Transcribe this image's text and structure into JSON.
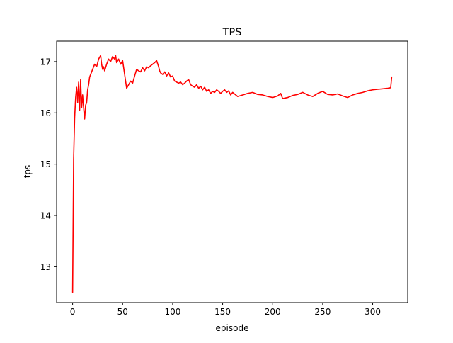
{
  "chart_data": {
    "type": "line",
    "title": "TPS",
    "xlabel": "episode",
    "ylabel": "tps",
    "xlim": [
      -16,
      335
    ],
    "ylim": [
      12.3,
      17.4
    ],
    "xticks": [
      0,
      50,
      100,
      150,
      200,
      250,
      300
    ],
    "yticks": [
      13,
      14,
      15,
      16,
      17
    ],
    "grid": false,
    "legend": "none",
    "series": [
      {
        "color": "#ff0000",
        "x": [
          0,
          1,
          2,
          3,
          4,
          5,
          6,
          7,
          8,
          9,
          10,
          11,
          12,
          13,
          14,
          15,
          16,
          17,
          18,
          19,
          20,
          22,
          24,
          26,
          28,
          29,
          30,
          31,
          32,
          34,
          36,
          38,
          40,
          42,
          43,
          44,
          46,
          48,
          50,
          52,
          54,
          56,
          58,
          60,
          62,
          64,
          66,
          68,
          70,
          72,
          74,
          76,
          78,
          80,
          82,
          84,
          86,
          87,
          88,
          90,
          92,
          94,
          96,
          98,
          100,
          102,
          104,
          106,
          108,
          110,
          112,
          114,
          116,
          118,
          120,
          122,
          124,
          126,
          128,
          130,
          132,
          134,
          136,
          138,
          140,
          142,
          144,
          146,
          148,
          150,
          152,
          154,
          156,
          158,
          160,
          165,
          170,
          175,
          180,
          185,
          190,
          195,
          200,
          205,
          208,
          210,
          215,
          220,
          225,
          230,
          235,
          240,
          245,
          250,
          255,
          260,
          265,
          270,
          275,
          280,
          285,
          290,
          295,
          300,
          305,
          310,
          315,
          318,
          319
        ],
        "y": [
          12.5,
          15.1,
          15.9,
          16.3,
          16.5,
          16.2,
          16.6,
          16.05,
          16.65,
          16.1,
          16.35,
          16.1,
          15.88,
          16.15,
          16.2,
          16.45,
          16.55,
          16.7,
          16.75,
          16.8,
          16.85,
          16.95,
          16.9,
          17.05,
          17.12,
          16.95,
          16.85,
          16.9,
          16.82,
          16.95,
          17.05,
          17.0,
          17.1,
          17.05,
          17.12,
          16.98,
          17.05,
          16.95,
          17.02,
          16.75,
          16.48,
          16.55,
          16.62,
          16.58,
          16.72,
          16.85,
          16.82,
          16.8,
          16.88,
          16.82,
          16.9,
          16.88,
          16.92,
          16.95,
          16.98,
          17.02,
          16.9,
          16.82,
          16.78,
          16.75,
          16.8,
          16.72,
          16.78,
          16.7,
          16.72,
          16.62,
          16.6,
          16.58,
          16.6,
          16.55,
          16.58,
          16.62,
          16.65,
          16.55,
          16.52,
          16.5,
          16.55,
          16.48,
          16.52,
          16.45,
          16.5,
          16.42,
          16.45,
          16.38,
          16.42,
          16.4,
          16.45,
          16.42,
          16.38,
          16.42,
          16.45,
          16.4,
          16.43,
          16.35,
          16.4,
          16.32,
          16.35,
          16.38,
          16.4,
          16.36,
          16.35,
          16.32,
          16.3,
          16.33,
          16.38,
          16.28,
          16.3,
          16.34,
          16.36,
          16.4,
          16.35,
          16.32,
          16.38,
          16.42,
          16.36,
          16.35,
          16.37,
          16.33,
          16.3,
          16.35,
          16.38,
          16.4,
          16.43,
          16.45,
          16.46,
          16.47,
          16.48,
          16.49,
          16.7
        ]
      }
    ]
  }
}
